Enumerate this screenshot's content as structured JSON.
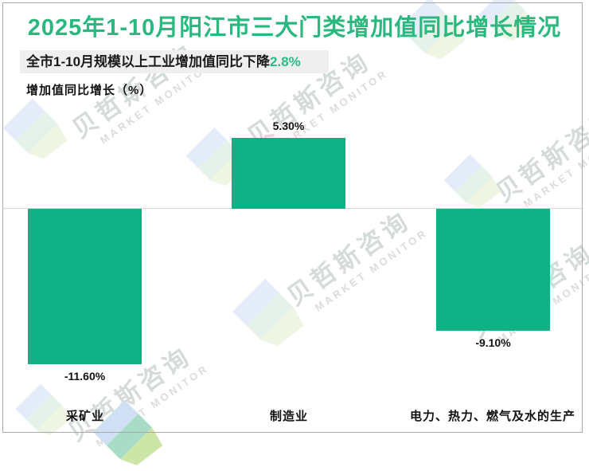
{
  "chart": {
    "title": "2025年1-10月阳江市三大门类增加值同比增长情况",
    "subtitle_text": "全市1-10月规模以上工业增加值同比下降",
    "subtitle_highlight": "2.8%",
    "axis_label": "增加值同比增长（%）"
  },
  "chart_data": {
    "type": "bar",
    "title": "2025年1-10月阳江市三大门类增加值同比增长情况",
    "subtitle": "全市1-10月规模以上工业增加值同比下降2.8%",
    "ylabel": "增加值同比增长（%）",
    "categories": [
      "采矿业",
      "制造业",
      "电力、热力、燃气及水的生产"
    ],
    "values": [
      -11.6,
      5.3,
      -9.1
    ],
    "value_labels": [
      "-11.60%",
      "5.30%",
      "-9.10%"
    ],
    "ylim": [
      -13,
      7
    ],
    "grid": false,
    "legend": false,
    "bar_color": "#10b185"
  },
  "colors": {
    "title_green": "#2bb87f",
    "highlight_green": "#2eba85",
    "bar_green": "#10b185",
    "subtitle_bg": "#efefef",
    "frame_border": "#a9a9a9",
    "zero_line": "#d6d6d6"
  },
  "watermark": {
    "cn": "贝哲斯咨询",
    "en": "MARKET MONITOR"
  }
}
